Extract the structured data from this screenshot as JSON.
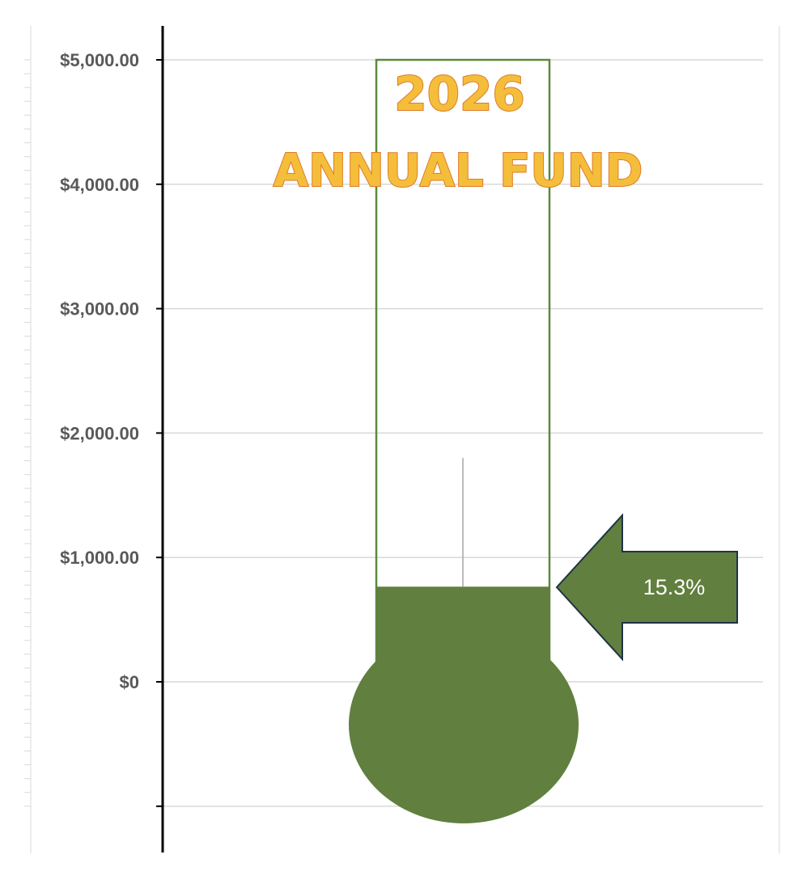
{
  "chart_data": {
    "type": "bar",
    "title_lines": [
      "2026",
      "ANNUAL FUND"
    ],
    "ylim": [
      -1000,
      5000
    ],
    "yticks": [
      {
        "value": 5000,
        "label": "$5,000.00"
      },
      {
        "value": 4000,
        "label": "$4,000.00"
      },
      {
        "value": 3000,
        "label": "$3,000.00"
      },
      {
        "value": 2000,
        "label": "$2,000.00"
      },
      {
        "value": 1000,
        "label": "$1,000.00"
      },
      {
        "value": 0,
        "label": "$0"
      },
      {
        "value": -1000,
        "label": ""
      }
    ],
    "goal": 5000,
    "raised": 765,
    "percent_label": "15.3%",
    "error_bar_top": 1800,
    "grid": true,
    "colors": {
      "fill": "#617F3F",
      "outline": "#5A8A3A",
      "title_fill": "#F4BE3B",
      "title_stroke": "#E07B26",
      "gridline": "#D9D9D9",
      "tick_text": "#595959"
    }
  }
}
